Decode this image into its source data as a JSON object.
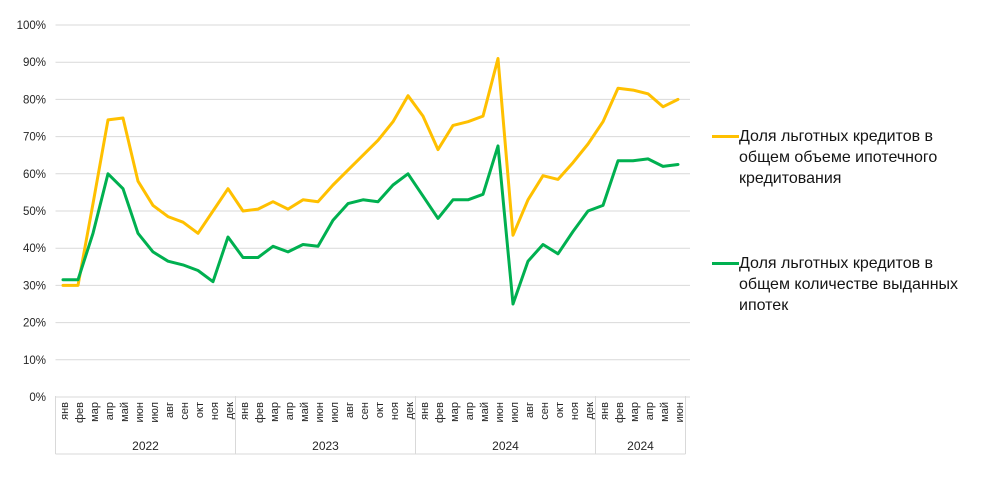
{
  "chart_data": {
    "type": "line",
    "title": "",
    "xlabel": "",
    "ylabel": "",
    "grid": true,
    "y_axis": {
      "min": 0,
      "max": 100,
      "step": 10,
      "tick_labels": [
        "0%",
        "10%",
        "20%",
        "30%",
        "40%",
        "50%",
        "60%",
        "70%",
        "80%",
        "90%",
        "100%"
      ]
    },
    "x_groups": [
      {
        "year": "2022",
        "months": [
          "янв",
          "фев",
          "мар",
          "апр",
          "май",
          "июн",
          "июл",
          "авг",
          "сен",
          "окт",
          "ноя",
          "дек"
        ]
      },
      {
        "year": "2023",
        "months": [
          "янв",
          "фев",
          "мар",
          "апр",
          "май",
          "июн",
          "июл",
          "авг",
          "сен",
          "окт",
          "ноя",
          "дек"
        ]
      },
      {
        "year": "2024",
        "months": [
          "янв",
          "фев",
          "мар",
          "апр",
          "май",
          "июн",
          "июл",
          "авг",
          "сен",
          "окт",
          "ноя",
          "дек"
        ]
      },
      {
        "year": "2024",
        "months": [
          "янв",
          "фев",
          "мар",
          "апр",
          "май",
          "июн"
        ]
      }
    ],
    "series": [
      {
        "name": "Доля льготных кредитов в общем объеме ипотечного кредитования",
        "color": "#FFC000",
        "values": [
          30,
          30,
          52,
          74.5,
          75,
          58,
          51.5,
          48.5,
          47,
          44,
          50,
          56,
          50,
          50.5,
          52.5,
          50.5,
          53,
          52.5,
          57,
          61,
          65,
          69,
          74,
          81,
          75.5,
          66.5,
          73,
          74,
          75.5,
          91,
          43.5,
          53,
          59.5,
          58.5,
          63,
          68,
          74,
          83,
          82.5,
          81.5,
          78,
          80
        ]
      },
      {
        "name": "Доля льготных кредитов в общем количестве выданных ипотек",
        "color": "#00B050",
        "values": [
          31.5,
          31.5,
          44,
          60,
          56,
          44,
          39,
          36.5,
          35.5,
          34,
          31,
          43,
          37.5,
          37.5,
          40.5,
          39,
          41,
          40.5,
          47.5,
          52,
          53,
          52.5,
          57,
          60,
          54,
          48,
          53,
          53,
          54.5,
          67.5,
          25,
          36.5,
          41,
          38.5,
          44.5,
          50,
          51.5,
          63.5,
          63.5,
          64,
          62,
          62.5
        ]
      }
    ],
    "legend_position": "right"
  },
  "legend": {
    "items": [
      {
        "color": "#FFC000",
        "lines": [
          "Доля льготных кредитов в",
          "общем объеме ипотечного",
          "кредитования"
        ]
      },
      {
        "color": "#00B050",
        "lines": [
          "Доля льготных кредитов в",
          "общем количестве выданных",
          "ипотек"
        ]
      }
    ]
  }
}
